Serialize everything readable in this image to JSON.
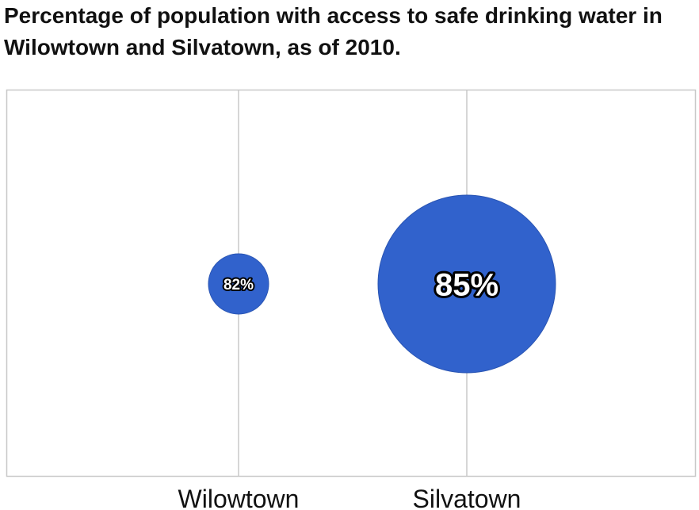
{
  "chart_data": {
    "type": "bubble",
    "title": "Percentage of population with access to safe drinking water in Wilowtown and Silvatown, as of 2010.",
    "categories": [
      "Wilowtown",
      "Silvatown"
    ],
    "values": [
      82,
      85
    ],
    "value_labels": [
      "82%",
      "85%"
    ],
    "unit": "%",
    "bubble_color": "#3162cc",
    "grid": true
  }
}
